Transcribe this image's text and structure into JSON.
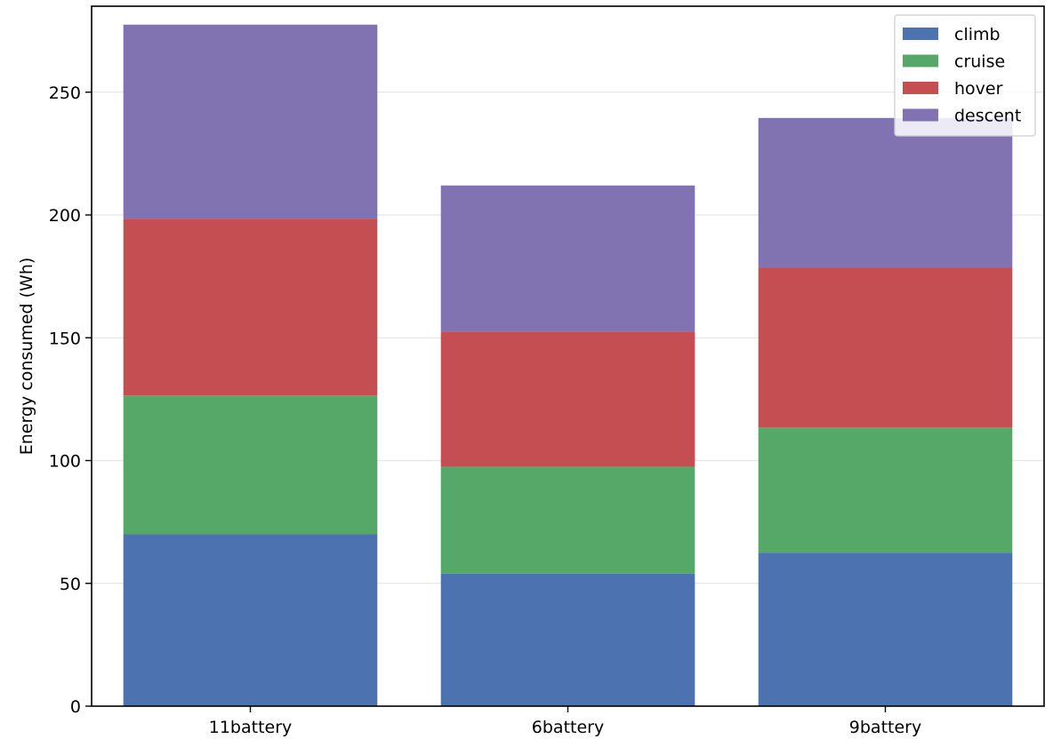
{
  "chart_data": {
    "type": "bar",
    "stacked": true,
    "title": "",
    "xlabel": "",
    "ylabel": "Energy consumed (Wh)",
    "categories": [
      "11battery",
      "6battery",
      "9battery"
    ],
    "series": [
      {
        "name": "climb",
        "color": "#4c72b0",
        "values": [
          70,
          54,
          62.5
        ]
      },
      {
        "name": "cruise",
        "color": "#55a868",
        "values": [
          56.5,
          43.5,
          51
        ]
      },
      {
        "name": "hover",
        "color": "#c44e52",
        "values": [
          72,
          55,
          65
        ]
      },
      {
        "name": "descent",
        "color": "#8172b2",
        "values": [
          79,
          59.5,
          61
        ]
      }
    ],
    "ylim": [
      0,
      285
    ],
    "yticks": [
      0,
      50,
      100,
      150,
      200,
      250
    ],
    "grid": "horizontal",
    "legend": "top-right"
  }
}
